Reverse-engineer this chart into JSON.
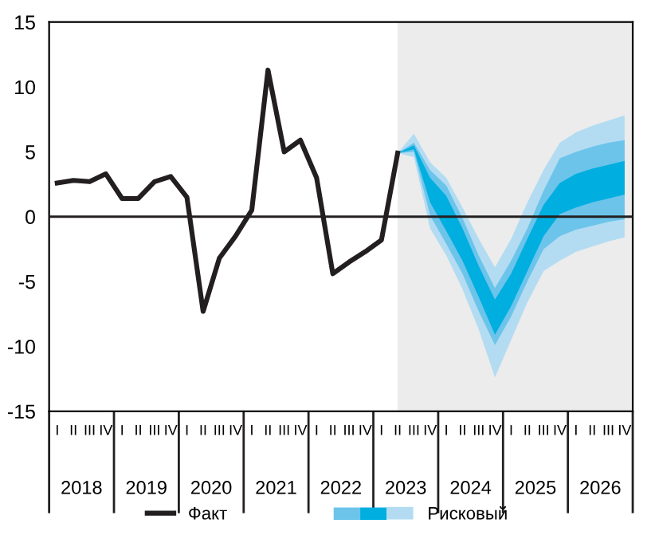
{
  "chart_data": {
    "type": "line",
    "categories": [
      "I",
      "II",
      "III",
      "IV",
      "I",
      "II",
      "III",
      "IV",
      "I",
      "II",
      "III",
      "IV",
      "I",
      "II",
      "III",
      "IV",
      "I",
      "II",
      "III",
      "IV",
      "I",
      "II",
      "III",
      "IV",
      "I",
      "II",
      "III",
      "IV",
      "I",
      "II",
      "III",
      "IV",
      "I",
      "II",
      "III",
      "IV"
    ],
    "annotations": [
      "2018",
      "2019",
      "2020",
      "2021",
      "2022",
      "2023",
      "2024",
      "2025",
      "2026"
    ],
    "ylim": [
      -15,
      15
    ],
    "yticks": [
      -15,
      -10,
      -5,
      0,
      5,
      10,
      15
    ],
    "grid": false,
    "legend": "bottom",
    "marker": "none",
    "ref_lines": [
      {
        "axis": "y",
        "value": 0,
        "color": "#231f20"
      }
    ],
    "series": [
      {
        "name": "Факт",
        "color": "#231f20",
        "values": [
          2.6,
          2.8,
          2.7,
          3.3,
          1.4,
          1.4,
          2.7,
          3.1,
          1.5,
          -7.3,
          -3.2,
          -1.5,
          0.5,
          11.3,
          5.0,
          5.9,
          3.0,
          -4.4,
          -3.5,
          -2.7,
          -1.8,
          4.9,
          null,
          null,
          null,
          null,
          null,
          null,
          null,
          null,
          null,
          null,
          null,
          null,
          null,
          null
        ]
      },
      {
        "name": "Рисковый",
        "color": "#b3dcf2",
        "values": [
          null,
          null,
          null,
          null,
          null,
          null,
          null,
          null,
          null,
          null,
          null,
          null,
          null,
          null,
          null,
          null,
          null,
          null,
          null,
          null,
          null,
          null,
          null,
          null,
          null,
          null,
          null,
          null,
          null,
          null,
          null,
          null,
          null,
          null,
          null,
          null
        ],
        "lower": [
          null,
          null,
          null,
          null,
          null,
          null,
          null,
          null,
          null,
          null,
          null,
          null,
          null,
          null,
          null,
          null,
          null,
          null,
          null,
          null,
          null,
          4.9,
          4.6,
          -0.9,
          -3.0,
          -5.6,
          -8.7,
          -12.4,
          -9.5,
          -6.6,
          -4.2,
          -3.4,
          -2.7,
          -2.3,
          -1.9,
          -1.6
        ],
        "upper": [
          null,
          null,
          null,
          null,
          null,
          null,
          null,
          null,
          null,
          null,
          null,
          null,
          null,
          null,
          null,
          null,
          null,
          null,
          null,
          null,
          null,
          4.9,
          6.4,
          4.2,
          3.0,
          0.7,
          -1.7,
          -3.9,
          -1.7,
          1.1,
          3.6,
          5.7,
          6.5,
          7.0,
          7.4,
          7.8
        ]
      },
      {
        "color": "#6cc4ea",
        "values": [
          null,
          null,
          null,
          null,
          null,
          null,
          null,
          null,
          null,
          null,
          null,
          null,
          null,
          null,
          null,
          null,
          null,
          null,
          null,
          null,
          null,
          null,
          null,
          null,
          null,
          null,
          null,
          null,
          null,
          null,
          null,
          null,
          null,
          null,
          null,
          null
        ],
        "lower": [
          null,
          null,
          null,
          null,
          null,
          null,
          null,
          null,
          null,
          null,
          null,
          null,
          null,
          null,
          null,
          null,
          null,
          null,
          null,
          null,
          null,
          4.9,
          5.0,
          0.1,
          -2.1,
          -4.4,
          -7.3,
          -9.9,
          -7.7,
          -5.0,
          -2.5,
          -1.5,
          -1.0,
          -0.7,
          -0.4,
          -0.2
        ],
        "upper": [
          null,
          null,
          null,
          null,
          null,
          null,
          null,
          null,
          null,
          null,
          null,
          null,
          null,
          null,
          null,
          null,
          null,
          null,
          null,
          null,
          null,
          4.9,
          5.7,
          3.6,
          2.4,
          -0.1,
          -3.0,
          -5.5,
          -3.4,
          -0.9,
          2.0,
          4.5,
          5.0,
          5.4,
          5.7,
          5.9
        ]
      },
      {
        "color": "#00aee0",
        "values": [
          null,
          null,
          null,
          null,
          null,
          null,
          null,
          null,
          null,
          null,
          null,
          null,
          null,
          null,
          null,
          null,
          null,
          null,
          null,
          null,
          null,
          null,
          null,
          null,
          null,
          null,
          null,
          null,
          null,
          null,
          null,
          null,
          null,
          null,
          null,
          null
        ],
        "lower": [
          null,
          null,
          null,
          null,
          null,
          null,
          null,
          null,
          null,
          null,
          null,
          null,
          null,
          null,
          null,
          null,
          null,
          null,
          null,
          null,
          null,
          4.9,
          5.2,
          1.1,
          -1.1,
          -3.4,
          -6.2,
          -9.1,
          -6.9,
          -4.2,
          -1.5,
          0.2,
          0.7,
          1.1,
          1.4,
          1.7
        ],
        "upper": [
          null,
          null,
          null,
          null,
          null,
          null,
          null,
          null,
          null,
          null,
          null,
          null,
          null,
          null,
          null,
          null,
          null,
          null,
          null,
          null,
          null,
          4.9,
          5.5,
          3.0,
          1.6,
          -0.9,
          -3.8,
          -6.4,
          -4.4,
          -1.7,
          0.9,
          2.6,
          3.3,
          3.7,
          4.0,
          4.3
        ]
      }
    ]
  }
}
